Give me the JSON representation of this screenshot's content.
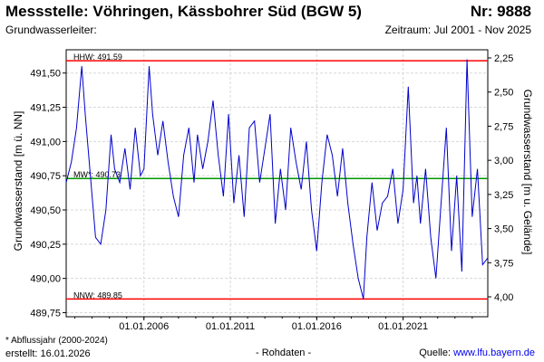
{
  "header": {
    "title": "Messstelle: Vöhringen, Kässbohrer Süd (BGW 5)",
    "number": "Nr: 9888",
    "aquifer_label": "Grundwasserleiter:",
    "period": "Zeitraum: Jul 2001 - Nov 2025"
  },
  "footer": {
    "note": "* Abflussjahr (2000-2024)",
    "created": "erstellt:  16.01.2026",
    "data_type": "- Rohdaten -",
    "source_label": "Quelle: ",
    "source_link": "www.lfu.bayern.de"
  },
  "chart_data": {
    "type": "line",
    "ylabel": "Grundwasserstand [m ü. NN]",
    "y2label": "Grundwasserstand [m u. Gelände]",
    "ylim": [
      489.72,
      491.67
    ],
    "y_ticks": [
      "491,50",
      "491,25",
      "491,00",
      "490,75",
      "490,50",
      "490,25",
      "490,00",
      "489,75"
    ],
    "y_tick_values": [
      491.5,
      491.25,
      491.0,
      490.75,
      490.5,
      490.25,
      490.0,
      489.75
    ],
    "y2_ticks": [
      "2,25",
      "2,50",
      "2,75",
      "3,00",
      "3,25",
      "3,50",
      "3,75",
      "4,00"
    ],
    "y2_tick_values": [
      2.25,
      2.5,
      2.75,
      3.0,
      3.25,
      3.5,
      3.75,
      4.0
    ],
    "x_ticks": [
      "01.01.2006",
      "01.01.2011",
      "01.01.2016",
      "01.01.2021"
    ],
    "x_tick_values": [
      2006.0,
      2011.0,
      2016.0,
      2021.0
    ],
    "xlim": [
      2001.5,
      2025.9
    ],
    "grid": true,
    "reference_lines": [
      {
        "label": "HHW: 491.59",
        "value": 491.59,
        "color": "#ff0000"
      },
      {
        "label": "MW*: 490.73",
        "value": 490.73,
        "color": "#009900"
      },
      {
        "label": "NNW: 489.85",
        "value": 489.85,
        "color": "#ff0000"
      }
    ],
    "series_color": "#0000cc",
    "series": [
      {
        "x": [
          2001.5,
          2001.8,
          2002.1,
          2002.4,
          2002.6,
          2002.9,
          2003.2,
          2003.5,
          2003.8,
          2004.1,
          2004.3,
          2004.6,
          2004.9,
          2005.2,
          2005.5,
          2005.8,
          2006.0,
          2006.3,
          2006.5,
          2006.8,
          2007.1,
          2007.4,
          2007.7,
          2008.0,
          2008.3,
          2008.6,
          2008.9,
          2009.1,
          2009.4,
          2009.7,
          2010.0,
          2010.3,
          2010.6,
          2010.9,
          2011.2,
          2011.5,
          2011.8,
          2012.1,
          2012.4,
          2012.7,
          2013.0,
          2013.3,
          2013.6,
          2013.9,
          2014.2,
          2014.5,
          2014.8,
          2015.1,
          2015.4,
          2015.7,
          2016.0,
          2016.3,
          2016.6,
          2016.9,
          2017.2,
          2017.5,
          2017.8,
          2018.1,
          2018.4,
          2018.7,
          2018.9,
          2019.2,
          2019.5,
          2019.8,
          2020.1,
          2020.4,
          2020.7,
          2021.0,
          2021.3,
          2021.6,
          2021.8,
          2022.0,
          2022.3,
          2022.6,
          2022.9,
          2023.2,
          2023.5,
          2023.8,
          2024.1,
          2024.4,
          2024.7,
          2025.0,
          2025.3,
          2025.6,
          2025.9
        ],
        "y": [
          490.7,
          490.85,
          491.1,
          491.55,
          491.2,
          490.75,
          490.3,
          490.25,
          490.5,
          491.05,
          490.8,
          490.7,
          490.95,
          490.65,
          491.1,
          490.75,
          490.8,
          491.55,
          491.2,
          490.9,
          491.15,
          490.85,
          490.6,
          490.45,
          490.9,
          491.1,
          490.7,
          491.05,
          490.8,
          491.0,
          491.3,
          490.9,
          490.6,
          491.2,
          490.55,
          490.9,
          490.45,
          491.1,
          491.15,
          490.7,
          490.95,
          491.2,
          490.4,
          490.8,
          490.5,
          491.1,
          490.85,
          490.65,
          491.0,
          490.5,
          490.2,
          490.7,
          491.05,
          490.9,
          490.6,
          490.95,
          490.55,
          490.25,
          490.0,
          489.85,
          490.3,
          490.7,
          490.35,
          490.55,
          490.6,
          490.8,
          490.4,
          490.65,
          491.4,
          490.55,
          490.75,
          490.4,
          490.8,
          490.3,
          490.0,
          490.55,
          491.1,
          490.2,
          490.75,
          490.05,
          491.6,
          490.45,
          490.8,
          490.1,
          490.15
        ]
      }
    ]
  }
}
